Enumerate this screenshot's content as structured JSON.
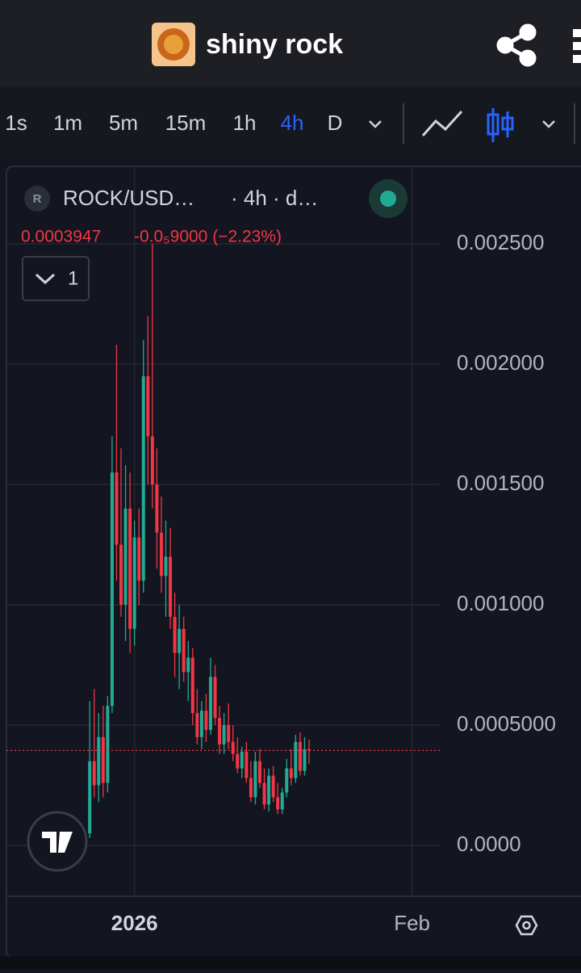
{
  "header": {
    "title": "shiny rock"
  },
  "toolbar": {
    "intervals": [
      "1s",
      "1m",
      "5m",
      "15m",
      "1h",
      "4h",
      "D"
    ],
    "active": "4h"
  },
  "chart_data": {
    "type": "candlestick",
    "symbol": "ROCK/USD…",
    "interval_info": "· 4h · d…",
    "last_price": 0.0003947,
    "change_label": "-0.0₅9000 (−2.23%)",
    "indicator_count": 1,
    "up_color": "#22ab94",
    "down_color": "#f23645",
    "grid": true,
    "ylim": [
      -0.0002,
      0.0028
    ],
    "yticks": [
      {
        "value": 0,
        "label": "0.0000"
      },
      {
        "value": 0.0005,
        "label": "0.0005000"
      },
      {
        "value": 0.001,
        "label": "0.001000"
      },
      {
        "value": 0.0015,
        "label": "0.001500"
      },
      {
        "value": 0.002,
        "label": "0.002000"
      },
      {
        "value": 0.0025,
        "label": "0.002500"
      }
    ],
    "xlim": [
      -14.3,
      34.1
    ],
    "xticks": [
      {
        "value": 0,
        "label": "2026"
      },
      {
        "value": 31,
        "label": "Feb"
      }
    ],
    "candles": [
      {
        "x": -5.0,
        "open": 5e-05,
        "high": 0.0006,
        "low": 3e-05,
        "close": 0.00035
      },
      {
        "x": -4.5,
        "open": 0.00035,
        "high": 0.00065,
        "low": 0.0002,
        "close": 0.00025
      },
      {
        "x": -4.0,
        "open": 0.00025,
        "high": 0.00055,
        "low": 0.00018,
        "close": 0.00045
      },
      {
        "x": -3.5,
        "open": 0.00045,
        "high": 0.00058,
        "low": 0.0002,
        "close": 0.00026
      },
      {
        "x": -3.0,
        "open": 0.00026,
        "high": 0.00062,
        "low": 0.00022,
        "close": 0.00058
      },
      {
        "x": -2.5,
        "open": 0.00058,
        "high": 0.0017,
        "low": 0.00055,
        "close": 0.00155
      },
      {
        "x": -2.0,
        "open": 0.00155,
        "high": 0.00208,
        "low": 0.0011,
        "close": 0.00125
      },
      {
        "x": -1.5,
        "open": 0.00125,
        "high": 0.00165,
        "low": 0.00095,
        "close": 0.001
      },
      {
        "x": -1.0,
        "open": 0.001,
        "high": 0.00158,
        "low": 0.00085,
        "close": 0.0014
      },
      {
        "x": -0.5,
        "open": 0.0014,
        "high": 0.00155,
        "low": 0.0008,
        "close": 0.0009
      },
      {
        "x": 0.0,
        "open": 0.0009,
        "high": 0.00135,
        "low": 0.00083,
        "close": 0.00128
      },
      {
        "x": 0.5,
        "open": 0.00128,
        "high": 0.0014,
        "low": 0.001,
        "close": 0.0011
      },
      {
        "x": 1.0,
        "open": 0.0011,
        "high": 0.0021,
        "low": 0.00105,
        "close": 0.00195
      },
      {
        "x": 1.5,
        "open": 0.00195,
        "high": 0.0022,
        "low": 0.0015,
        "close": 0.0017
      },
      {
        "x": 2.0,
        "open": 0.0017,
        "high": 0.0025,
        "low": 0.0014,
        "close": 0.0015
      },
      {
        "x": 2.5,
        "open": 0.0015,
        "high": 0.00165,
        "low": 0.00115,
        "close": 0.0013
      },
      {
        "x": 3.0,
        "open": 0.0013,
        "high": 0.00145,
        "low": 0.00105,
        "close": 0.00112
      },
      {
        "x": 3.5,
        "open": 0.00112,
        "high": 0.00135,
        "low": 0.00095,
        "close": 0.0012
      },
      {
        "x": 4.0,
        "open": 0.0012,
        "high": 0.00132,
        "low": 0.0009,
        "close": 0.00095
      },
      {
        "x": 4.5,
        "open": 0.00095,
        "high": 0.00105,
        "low": 0.0007,
        "close": 0.0008
      },
      {
        "x": 5.0,
        "open": 0.0008,
        "high": 0.001,
        "low": 0.00065,
        "close": 0.0009
      },
      {
        "x": 5.5,
        "open": 0.0009,
        "high": 0.00095,
        "low": 0.00068,
        "close": 0.00072
      },
      {
        "x": 6.0,
        "open": 0.00072,
        "high": 0.00085,
        "low": 0.0006,
        "close": 0.00078
      },
      {
        "x": 6.5,
        "open": 0.00078,
        "high": 0.00082,
        "low": 0.0005,
        "close": 0.00055
      },
      {
        "x": 7.0,
        "open": 0.00055,
        "high": 0.00065,
        "low": 0.00042,
        "close": 0.00045
      },
      {
        "x": 7.5,
        "open": 0.00045,
        "high": 0.0006,
        "low": 0.0004,
        "close": 0.00056
      },
      {
        "x": 8.0,
        "open": 0.00056,
        "high": 0.00063,
        "low": 0.00043,
        "close": 0.00048
      },
      {
        "x": 8.5,
        "open": 0.00048,
        "high": 0.00078,
        "low": 0.00046,
        "close": 0.0007
      },
      {
        "x": 9.0,
        "open": 0.0007,
        "high": 0.00075,
        "low": 0.0005,
        "close": 0.00053
      },
      {
        "x": 9.5,
        "open": 0.00053,
        "high": 0.00058,
        "low": 0.00038,
        "close": 0.00042
      },
      {
        "x": 10.0,
        "open": 0.00042,
        "high": 0.00055,
        "low": 0.00038,
        "close": 0.0005
      },
      {
        "x": 10.5,
        "open": 0.0005,
        "high": 0.00059,
        "low": 0.0004,
        "close": 0.00043
      },
      {
        "x": 11.0,
        "open": 0.00043,
        "high": 0.0005,
        "low": 0.00035,
        "close": 0.00038
      },
      {
        "x": 11.5,
        "open": 0.00038,
        "high": 0.00045,
        "low": 0.0003,
        "close": 0.00032
      },
      {
        "x": 12.0,
        "open": 0.00032,
        "high": 0.00041,
        "low": 0.00028,
        "close": 0.00039
      },
      {
        "x": 12.5,
        "open": 0.00039,
        "high": 0.00043,
        "low": 0.00026,
        "close": 0.00028
      },
      {
        "x": 13.0,
        "open": 0.00028,
        "high": 0.00035,
        "low": 0.00018,
        "close": 0.0002
      },
      {
        "x": 13.5,
        "open": 0.0002,
        "high": 0.00039,
        "low": 0.00017,
        "close": 0.00035
      },
      {
        "x": 14.0,
        "open": 0.00035,
        "high": 0.0004,
        "low": 0.00024,
        "close": 0.00026
      },
      {
        "x": 14.5,
        "open": 0.00026,
        "high": 0.00032,
        "low": 0.00015,
        "close": 0.00017
      },
      {
        "x": 15.0,
        "open": 0.00017,
        "high": 0.00032,
        "low": 0.00014,
        "close": 0.00029
      },
      {
        "x": 15.5,
        "open": 0.00029,
        "high": 0.00033,
        "low": 0.00018,
        "close": 0.0002
      },
      {
        "x": 16.0,
        "open": 0.0002,
        "high": 0.00026,
        "low": 0.00013,
        "close": 0.00015
      },
      {
        "x": 16.5,
        "open": 0.00015,
        "high": 0.00024,
        "low": 0.00013,
        "close": 0.00022
      },
      {
        "x": 17.0,
        "open": 0.00022,
        "high": 0.00036,
        "low": 0.0002,
        "close": 0.00032
      },
      {
        "x": 17.5,
        "open": 0.00032,
        "high": 0.0004,
        "low": 0.00025,
        "close": 0.00028
      },
      {
        "x": 18.0,
        "open": 0.00028,
        "high": 0.00046,
        "low": 0.00026,
        "close": 0.00043
      },
      {
        "x": 18.5,
        "open": 0.00043,
        "high": 0.00047,
        "low": 0.00029,
        "close": 0.00031
      },
      {
        "x": 19.0,
        "open": 0.00031,
        "high": 0.00045,
        "low": 0.00029,
        "close": 0.0004
      },
      {
        "x": 19.5,
        "open": 0.0004,
        "high": 0.00044,
        "low": 0.00034,
        "close": 0.0003947
      }
    ]
  }
}
